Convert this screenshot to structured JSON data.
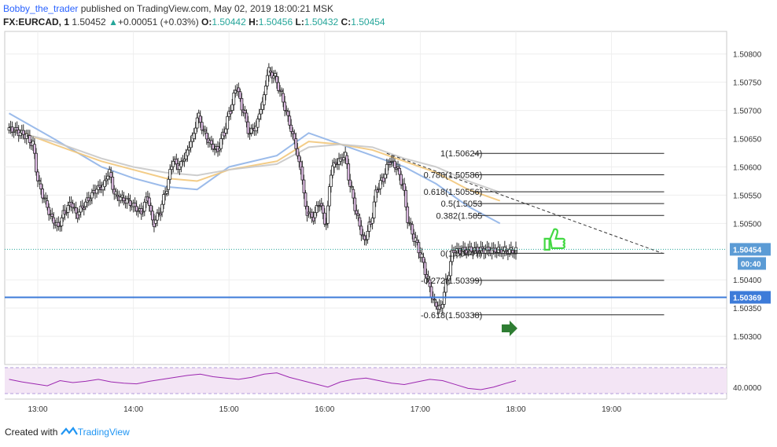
{
  "header": {
    "author": "Bobby_the_trader",
    "published": " published on TradingView.com, May 02, 2019 18:00:21 MSK",
    "symbol": "FX:EURCAD, 1",
    "last": " 1.50452 ",
    "change_arrow": "▲",
    "change": "+0.00051 (+0.03%)",
    "o_label": " O:",
    "o_val": "1.50442",
    "h_label": " H:",
    "h_val": "1.50456",
    "l_label": " L:",
    "l_val": "1.50432",
    "c_label": " C:",
    "c_val": "1.50454"
  },
  "footer": {
    "created": "Created with ",
    "brand": "TradingView"
  },
  "colors": {
    "up": "#26a69a",
    "candle": "#2a2a2a",
    "candle_body": "#e1bee7",
    "ma_blue": "#90b4e8",
    "ma_orange": "#f2c77a",
    "ma_gray": "#c8c8c8",
    "hline": "#3d7bd9",
    "rsi_fill": "#f3e5f5",
    "rsi_line": "#9c27b0",
    "arrow_green": "#2e7d32",
    "thumb_green": "#43d843"
  },
  "icons": {
    "thumbs_up": "thumbs-up-icon",
    "arrow_right": "arrow-right-icon",
    "logo": "tradingview-logo-icon"
  },
  "chart_data": {
    "type": "line",
    "symbol": "FX:EURCAD",
    "interval": "1",
    "ylim": [
      1.5025,
      1.5084
    ],
    "y_ticks": [
      "1.50800",
      "1.50750",
      "1.50700",
      "1.50650",
      "1.50600",
      "1.50550",
      "1.50500",
      "1.50400",
      "1.50350",
      "1.50300"
    ],
    "x_ticks": [
      {
        "label": "13:00",
        "t": 0
      },
      {
        "label": "14:00",
        "t": 60
      },
      {
        "label": "15:00",
        "t": 120
      },
      {
        "label": "16:00",
        "t": 180
      },
      {
        "label": "17:00",
        "t": 240
      },
      {
        "label": "18:00",
        "t": 300
      },
      {
        "label": "19:00",
        "t": 360
      }
    ],
    "x_range_minutes": [
      -18,
      400
    ],
    "price_series": {
      "name": "",
      "t": [
        -18,
        -14,
        -10,
        -6,
        -2,
        2,
        6,
        10,
        14,
        18,
        22,
        26,
        30,
        34,
        38,
        42,
        46,
        50,
        54,
        58,
        62,
        66,
        70,
        74,
        78,
        82,
        86,
        90,
        94,
        98,
        102,
        106,
        110,
        114,
        118,
        122,
        126,
        130,
        134,
        138,
        142,
        146,
        150,
        154,
        158,
        162,
        166,
        170,
        174,
        178,
        182,
        186,
        190,
        194,
        198,
        202,
        206,
        210,
        214,
        218,
        222,
        226,
        230,
        234,
        238,
        242,
        246,
        250,
        254,
        258,
        262,
        266,
        270,
        274,
        278,
        282,
        286,
        290,
        294,
        298,
        300
      ],
      "values": [
        1.50665,
        1.5066,
        1.50655,
        1.5064,
        1.5057,
        1.5054,
        1.5051,
        1.50495,
        1.5052,
        1.50535,
        1.50515,
        1.5053,
        1.50545,
        1.5056,
        1.50565,
        1.5059,
        1.5055,
        1.50545,
        1.5054,
        1.5053,
        1.5052,
        1.50545,
        1.505,
        1.5052,
        1.5056,
        1.5061,
        1.506,
        1.5062,
        1.5065,
        1.5069,
        1.5066,
        1.5064,
        1.5063,
        1.5066,
        1.507,
        1.5074,
        1.507,
        1.5066,
        1.5067,
        1.5071,
        1.5077,
        1.5076,
        1.5073,
        1.5069,
        1.5065,
        1.506,
        1.5052,
        1.5051,
        1.50535,
        1.505,
        1.506,
        1.5061,
        1.5062,
        1.5056,
        1.5051,
        1.5047,
        1.505,
        1.5056,
        1.5058,
        1.5061,
        1.506,
        1.5057,
        1.505,
        1.5047,
        1.5044,
        1.504,
        1.5036,
        1.5035,
        1.504,
        1.50452,
        1.50452,
        1.50452,
        1.50452,
        1.50452,
        1.50452,
        1.50452,
        1.50452,
        1.50452,
        1.50452,
        1.50452,
        1.50452
      ]
    },
    "moving_averages": [
      {
        "name": "",
        "color": "#90b4e8",
        "t": [
          -18,
          10,
          40,
          60,
          80,
          100,
          120,
          150,
          170,
          190,
          210,
          230,
          250,
          270,
          290
        ],
        "values": [
          1.50695,
          1.5065,
          1.506,
          1.5058,
          1.50565,
          1.5056,
          1.506,
          1.5062,
          1.5066,
          1.5064,
          1.5062,
          1.506,
          1.5057,
          1.5053,
          1.505
        ]
      },
      {
        "name": "",
        "color": "#f2c77a",
        "t": [
          -18,
          10,
          40,
          60,
          80,
          100,
          120,
          150,
          170,
          190,
          210,
          230,
          250,
          270,
          290
        ],
        "values": [
          1.5067,
          1.5064,
          1.5061,
          1.50595,
          1.5058,
          1.50575,
          1.50595,
          1.5061,
          1.50645,
          1.5064,
          1.5063,
          1.5061,
          1.5059,
          1.5056,
          1.5054
        ]
      },
      {
        "name": "",
        "color": "#c8c8c8",
        "t": [
          -18,
          10,
          40,
          60,
          80,
          100,
          120,
          150,
          170,
          190,
          210,
          230,
          250,
          270,
          290
        ],
        "values": [
          1.50665,
          1.50645,
          1.50615,
          1.506,
          1.5059,
          1.50585,
          1.50595,
          1.50605,
          1.50635,
          1.5064,
          1.50635,
          1.50615,
          1.506,
          1.50575,
          1.50555
        ]
      }
    ],
    "fib_levels": [
      {
        "ratio": "1",
        "label": "1(1.50624)",
        "price": 1.50624
      },
      {
        "ratio": "0.786",
        "label": "0.786(1.50586)",
        "price": 1.50586
      },
      {
        "ratio": "0.618",
        "label": "0.618(1.50556)",
        "price": 1.50556
      },
      {
        "ratio": "0.5",
        "label": "0.5(1.5053",
        "price": 1.50535
      },
      {
        "ratio": "0.382",
        "label": "0.382(1.505",
        "price": 1.50514
      },
      {
        "ratio": "0",
        "label": "0(1.50447)",
        "price": 1.50447
      },
      {
        "ratio": "-0.272",
        "label": "-0.272(1.50399)",
        "price": 1.50399
      },
      {
        "ratio": "-0.618",
        "label": "-0.618(1.50338)",
        "price": 1.50338
      }
    ],
    "fib_t_range": [
      273,
      393
    ],
    "trendline": {
      "t": [
        219,
        392
      ],
      "values": [
        1.50624,
        1.50447
      ]
    },
    "horizontal_line": {
      "price": 1.50369,
      "label": "1.50369"
    },
    "last_price": {
      "price": 1.50454,
      "label": "1.50454",
      "countdown": "00:40"
    },
    "rsi": {
      "tick_label": "40.0000",
      "t": [
        -18,
        -10,
        -2,
        6,
        14,
        22,
        30,
        38,
        46,
        54,
        62,
        70,
        78,
        86,
        94,
        102,
        110,
        118,
        126,
        134,
        142,
        150,
        158,
        166,
        174,
        182,
        190,
        198,
        206,
        214,
        222,
        230,
        238,
        246,
        254,
        262,
        270,
        278,
        286,
        294,
        300
      ],
      "values": [
        52,
        48,
        45,
        42,
        50,
        47,
        49,
        52,
        48,
        46,
        45,
        49,
        52,
        55,
        58,
        60,
        56,
        54,
        52,
        55,
        60,
        62,
        55,
        50,
        45,
        40,
        48,
        52,
        54,
        50,
        46,
        44,
        48,
        52,
        50,
        44,
        38,
        36,
        40,
        46,
        50
      ]
    },
    "annotations": [
      {
        "type": "thumbs-up",
        "t": 323,
        "price": 1.5047
      },
      {
        "type": "arrow-right",
        "t": 298,
        "price": 1.50314
      }
    ]
  }
}
